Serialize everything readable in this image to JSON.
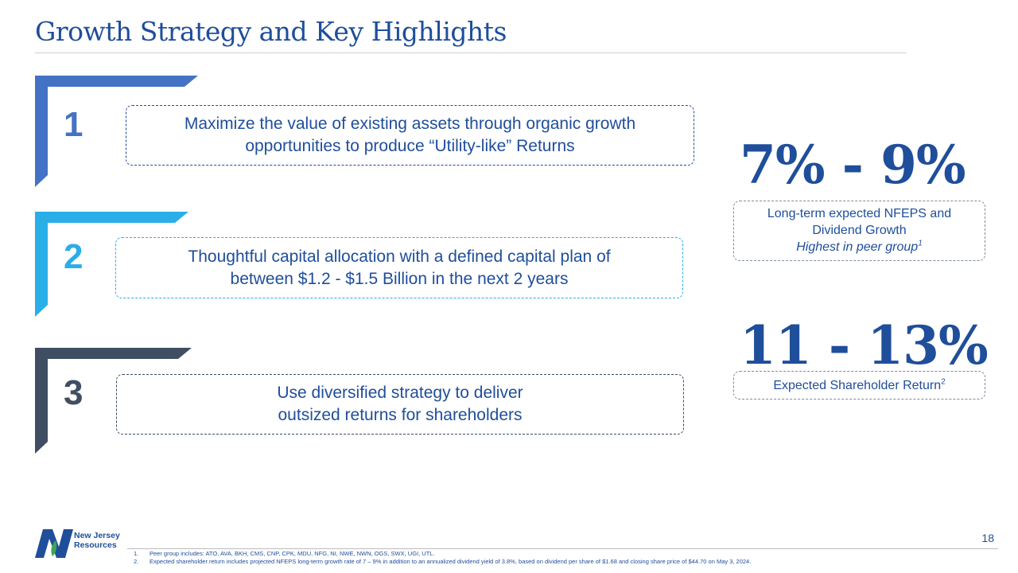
{
  "title": "Growth Strategy and Key Highlights",
  "items": [
    {
      "number": "1",
      "text_line1": "Maximize  the value of existing assets through organic growth",
      "text_line2": "opportunities to produce “Utility-like” Returns",
      "color": "#4472c4"
    },
    {
      "number": "2",
      "text_line1": "Thoughtful capital allocation with a defined capital plan of",
      "text_line2": "between $1.2 - $1.5 Billion in the next 2 years",
      "color": "#29aee8"
    },
    {
      "number": "3",
      "text_line1": "Use diversified strategy to deliver",
      "text_line2": "outsized returns for shareholders",
      "color": "#3f4e63"
    }
  ],
  "stats": [
    {
      "value": "7% - 9%",
      "line1": "Long-term expected NFEPS and",
      "line2": "Dividend Growth",
      "line3": "Highest in peer group",
      "footnote": "1"
    },
    {
      "value": "11 - 13%",
      "line1": "Expected Shareholder Return",
      "footnote": "2"
    }
  ],
  "logo": {
    "line1": "New Jersey",
    "line2": "Resources"
  },
  "page_number": "18",
  "footnotes": [
    {
      "n": "1.",
      "text": "Peer group includes: ATO, AVA, BKH, CMS, CNP, CPK, MDU, NFG, NI, NWE, NWN, OGS, SWX, UGI, UTL."
    },
    {
      "n": "2.",
      "text": "Expected shareholder return includes projected NFEPS long-term growth rate of 7 – 9% in addition to an annualized  dividend yield of 3.8%, based on dividend per share of $1.68 and closing share price of $44.70 on May 3, 2024."
    }
  ]
}
